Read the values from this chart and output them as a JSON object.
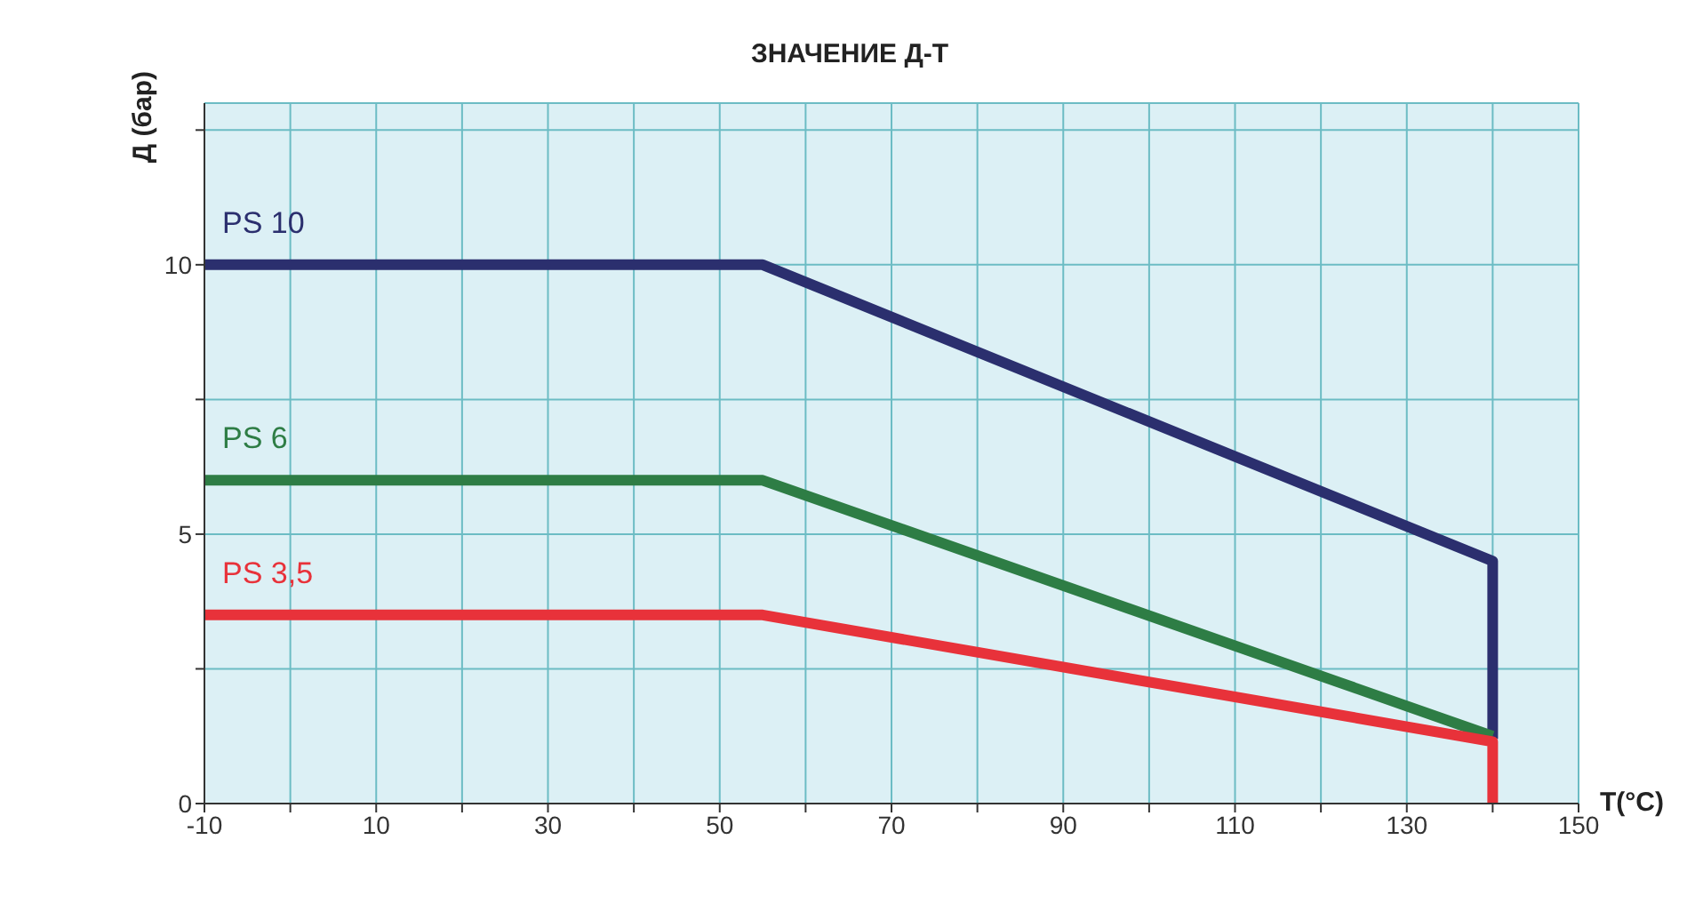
{
  "chart_data": {
    "type": "line",
    "title": "ЗНАЧЕНИЕ Д-Т",
    "xlabel": "T(°C)",
    "ylabel": "Д (бар)",
    "series": [
      {
        "name": "PS 10",
        "color": "#2b2f6e",
        "x": [
          -10,
          55,
          140,
          140
        ],
        "values": [
          10,
          10,
          4.5,
          1.2
        ]
      },
      {
        "name": "PS 6",
        "color": "#2e7d45",
        "x": [
          -10,
          55,
          140
        ],
        "values": [
          6,
          6,
          1.25
        ]
      },
      {
        "name": "PS 3,5",
        "color": "#e8323a",
        "x": [
          -10,
          55,
          140,
          140
        ],
        "values": [
          3.5,
          3.5,
          1.15,
          0
        ]
      }
    ],
    "xlim": [
      -10,
      150
    ],
    "xticks": [
      -10,
      {
        "value": 0,
        "label": null
      },
      10,
      {
        "value": 20,
        "label": null
      },
      30,
      {
        "value": 40,
        "label": null
      },
      50,
      {
        "value": 60,
        "label": null
      },
      70,
      {
        "value": 80,
        "label": null
      },
      90,
      {
        "value": 100,
        "label": null
      },
      110,
      {
        "value": 120,
        "label": null
      },
      130,
      {
        "value": 140,
        "label": null
      },
      150
    ],
    "ylim": [
      0,
      13
    ],
    "yticks": [
      0,
      {
        "value": 2.5,
        "label": null
      },
      5,
      {
        "value": 7.5,
        "label": null
      },
      10,
      {
        "value": 12.5,
        "label": null
      }
    ],
    "grid": true,
    "legend": false,
    "marker": "none",
    "line_style": "solid"
  }
}
